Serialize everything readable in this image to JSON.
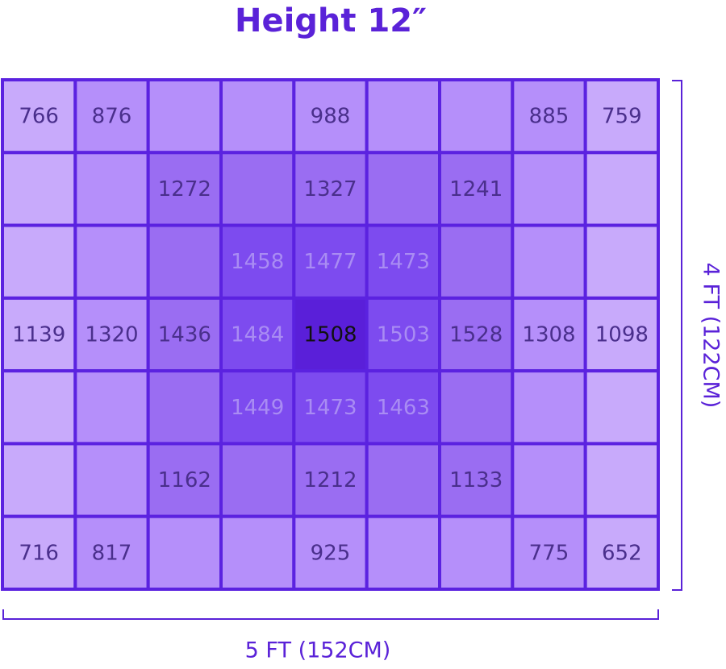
{
  "title": "Height 12″",
  "width_label": "5 FT (152CM)",
  "height_label": "4 FT (122CM)",
  "grid": {
    "rows": [
      [
        766,
        876,
        null,
        null,
        988,
        null,
        null,
        885,
        759
      ],
      [
        null,
        null,
        1272,
        null,
        1327,
        null,
        1241,
        null,
        null
      ],
      [
        null,
        null,
        null,
        1458,
        1477,
        1473,
        null,
        null,
        null
      ],
      [
        1139,
        1320,
        1436,
        1484,
        1508,
        1503,
        1528,
        1308,
        1098
      ],
      [
        null,
        null,
        null,
        1449,
        1473,
        1463,
        null,
        null,
        null
      ],
      [
        null,
        null,
        1162,
        null,
        1212,
        null,
        1133,
        null,
        null
      ],
      [
        716,
        817,
        null,
        null,
        925,
        null,
        null,
        775,
        652
      ]
    ]
  }
}
